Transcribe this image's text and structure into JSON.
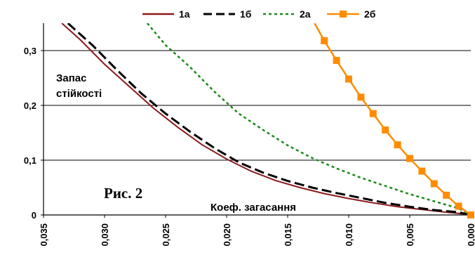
{
  "chart_data": {
    "type": "line",
    "figure_label": "Рис. 2",
    "ylabel_lines": [
      "Запас",
      "стійкості"
    ],
    "xlabel": "Коеф. загасання",
    "x_reversed": true,
    "xlim": [
      0.0,
      0.035
    ],
    "ylim": [
      0,
      0.35
    ],
    "x_ticks": [
      "0,035",
      "0,030",
      "0,025",
      "0,020",
      "0,015",
      "0,010",
      "0,005",
      "0,000"
    ],
    "y_ticks": [
      "0",
      "0,1",
      "0,2",
      "0,3"
    ],
    "legend_position": "top-right",
    "series": [
      {
        "name": "1а",
        "color": "#8b1a1a",
        "style": "solid",
        "x": [
          0.0335,
          0.032,
          0.03,
          0.028,
          0.026,
          0.024,
          0.022,
          0.02,
          0.018,
          0.016,
          0.014,
          0.012,
          0.01,
          0.008,
          0.006,
          0.004,
          0.002,
          0.001,
          0.0
        ],
        "y": [
          0.35,
          0.32,
          0.275,
          0.235,
          0.195,
          0.16,
          0.128,
          0.102,
          0.08,
          0.063,
          0.05,
          0.039,
          0.03,
          0.022,
          0.015,
          0.01,
          0.005,
          0.003,
          0.0
        ]
      },
      {
        "name": "1б",
        "color": "#000000",
        "style": "dashed",
        "x": [
          0.033,
          0.031,
          0.029,
          0.027,
          0.025,
          0.023,
          0.021,
          0.019,
          0.017,
          0.015,
          0.013,
          0.011,
          0.009,
          0.007,
          0.005,
          0.003,
          0.001,
          0.0
        ],
        "y": [
          0.35,
          0.31,
          0.265,
          0.222,
          0.185,
          0.152,
          0.122,
          0.096,
          0.077,
          0.062,
          0.05,
          0.04,
          0.031,
          0.022,
          0.015,
          0.009,
          0.005,
          0.0
        ]
      },
      {
        "name": "2а",
        "color": "#1a8a1a",
        "style": "dotted",
        "x": [
          0.0265,
          0.025,
          0.023,
          0.021,
          0.019,
          0.017,
          0.015,
          0.013,
          0.011,
          0.009,
          0.007,
          0.005,
          0.003,
          0.001,
          0.0
        ],
        "y": [
          0.35,
          0.31,
          0.27,
          0.225,
          0.185,
          0.155,
          0.127,
          0.104,
          0.085,
          0.068,
          0.053,
          0.038,
          0.025,
          0.012,
          0.0
        ]
      },
      {
        "name": "2б",
        "color": "#ff8c00",
        "style": "solid-square-markers",
        "x": [
          0.0128,
          0.012,
          0.011,
          0.01,
          0.009,
          0.008,
          0.007,
          0.006,
          0.005,
          0.004,
          0.003,
          0.002,
          0.001,
          0.0
        ],
        "y": [
          0.35,
          0.318,
          0.282,
          0.248,
          0.215,
          0.185,
          0.155,
          0.128,
          0.103,
          0.08,
          0.057,
          0.036,
          0.016,
          0.0
        ]
      }
    ]
  }
}
